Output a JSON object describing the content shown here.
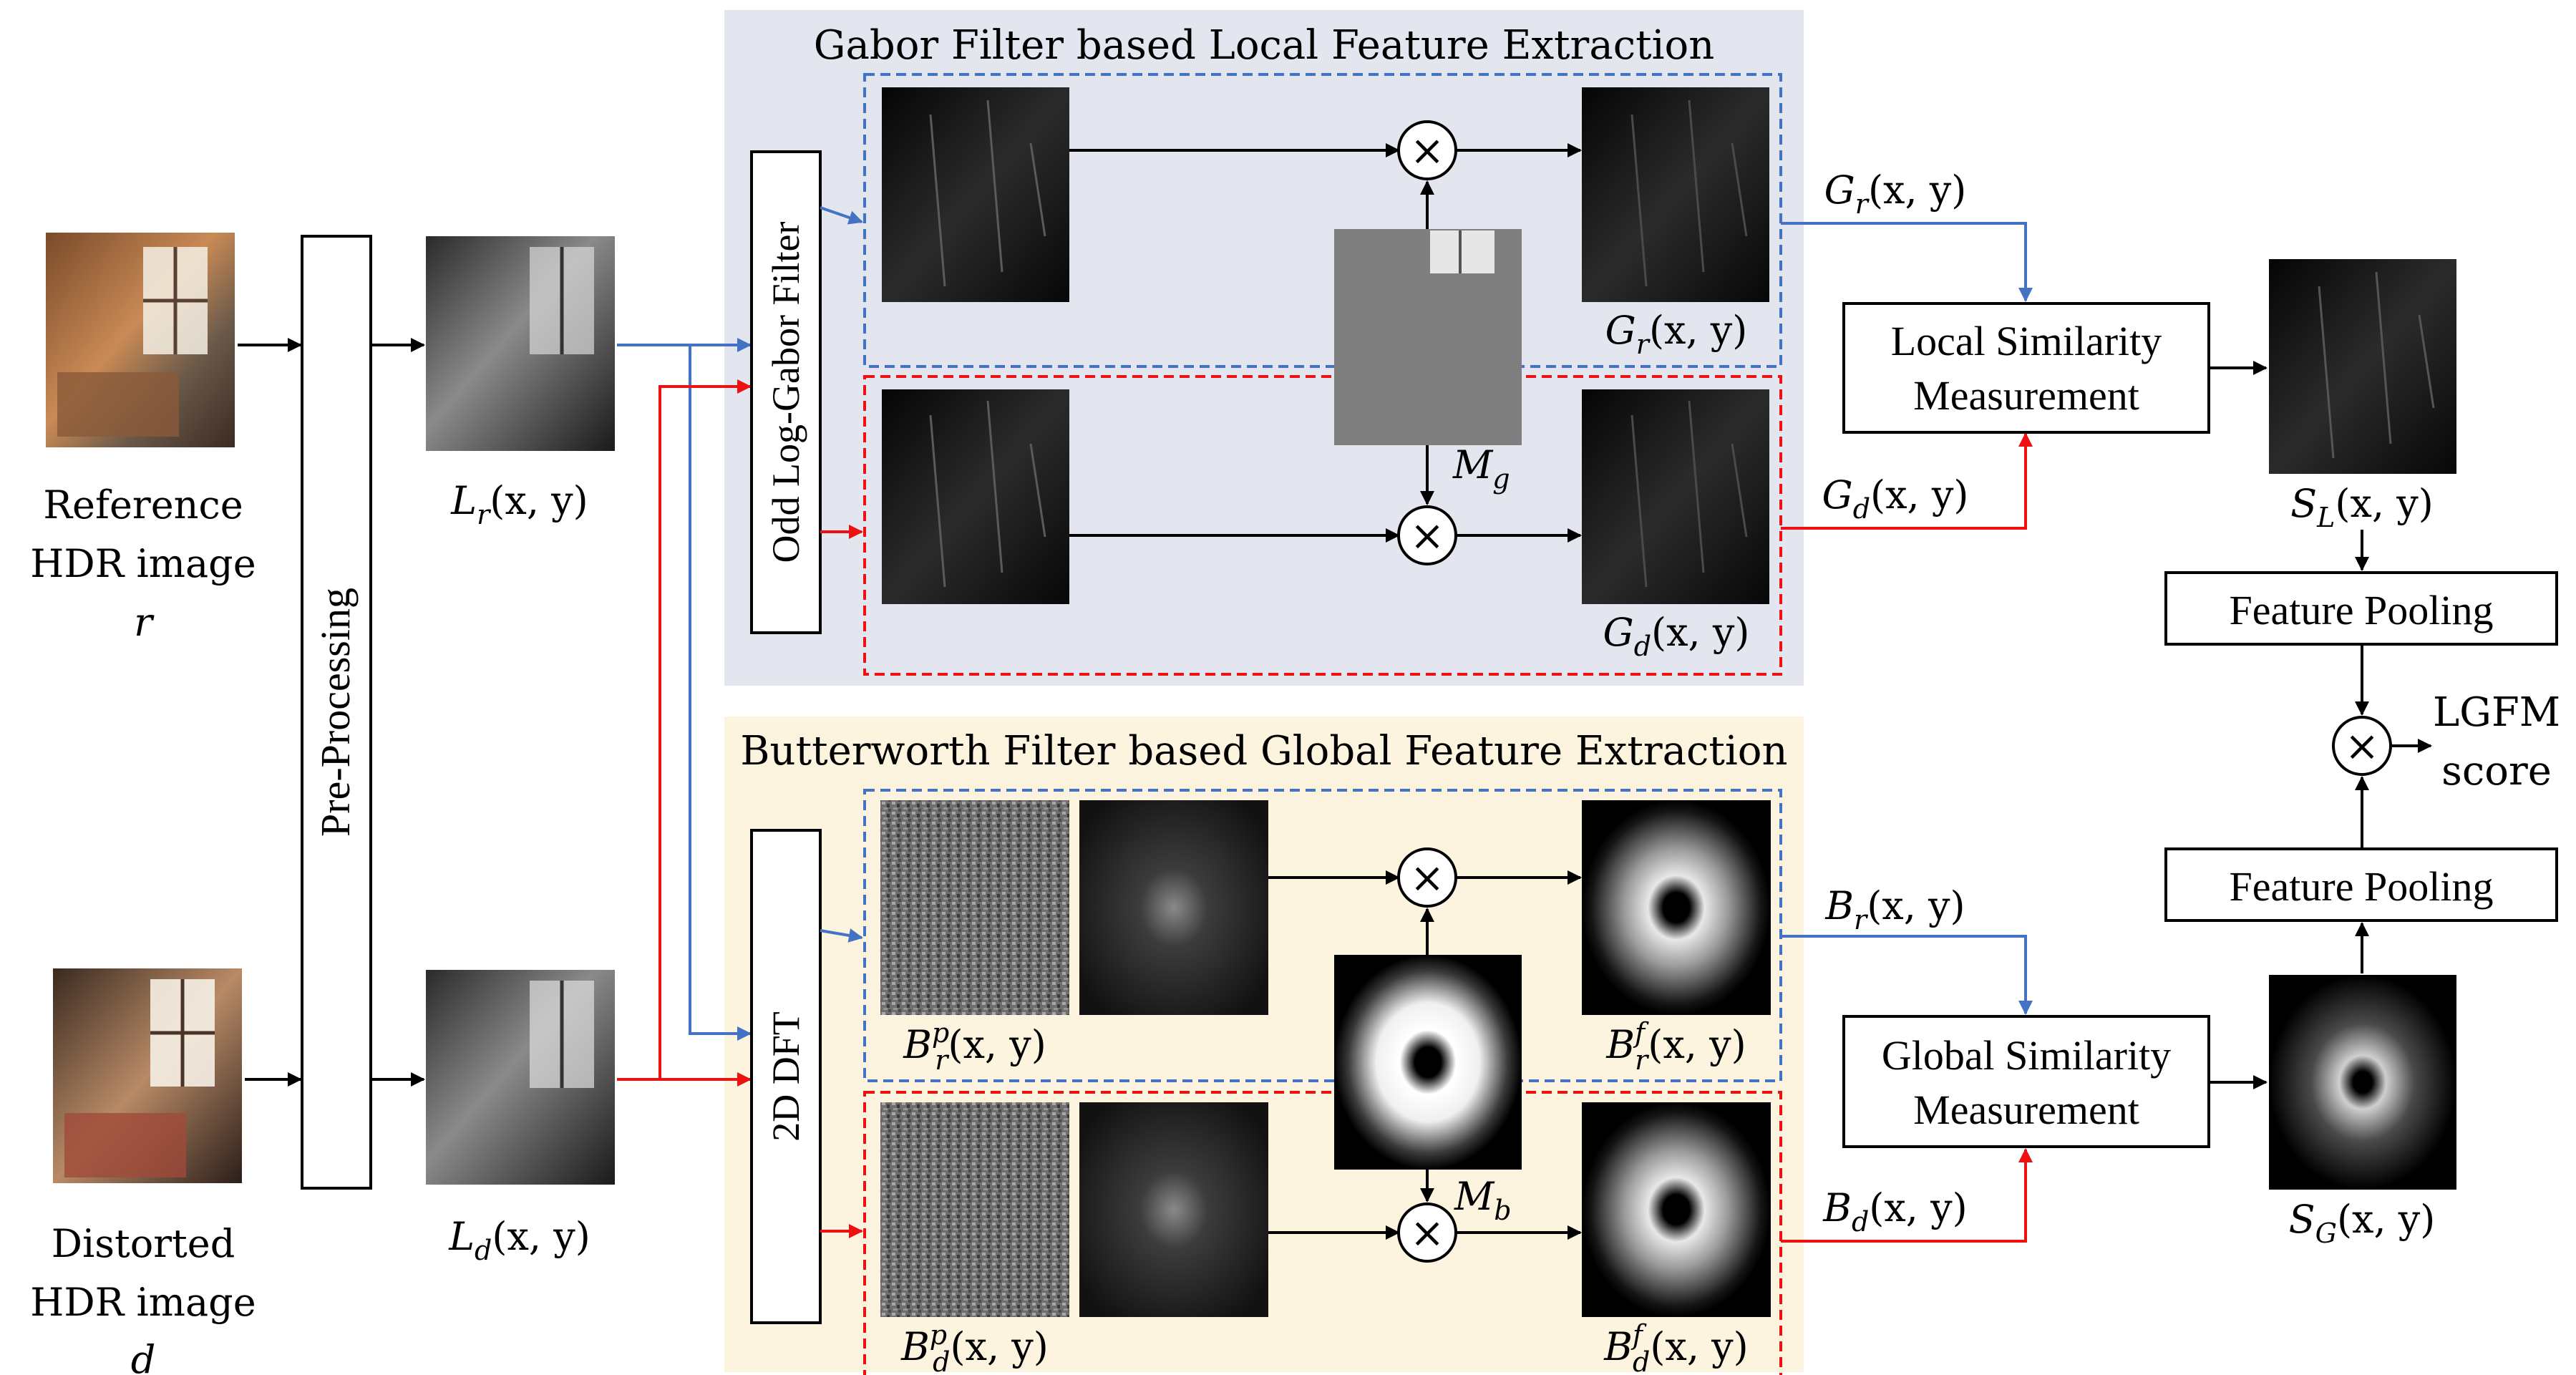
{
  "colors": {
    "local_bg": "#e3e6ee",
    "global_bg": "#fdf4e0",
    "reference_path": "#4472c4",
    "distorted_path": "#ee1111",
    "arrow_black": "#000000"
  },
  "inputs": {
    "reference_caption": [
      "Reference",
      "HDR image",
      "r"
    ],
    "distorted_caption": [
      "Distorted",
      "HDR image",
      "d"
    ]
  },
  "preprocess": {
    "label": "Pre-Processing",
    "out_reference": "L",
    "out_reference_sub": "r",
    "out_distorted": "L",
    "out_distorted_sub": "d",
    "arg": "(x, y)"
  },
  "local": {
    "title": "Gabor Filter based Local Feature Extraction",
    "filter_label": "Odd Log-Gabor Filter",
    "mask": "M",
    "mask_sub": "g",
    "out_r": "G",
    "out_r_sub": "r",
    "out_d": "G",
    "out_d_sub": "d",
    "arg": "(x, y)"
  },
  "global": {
    "title": "Butterworth Filter based Global Feature Extraction",
    "transform_label": "2D DFT",
    "mask": "M",
    "mask_sub": "b",
    "phase_r": "B",
    "phase_r_sup": "p",
    "phase_r_sub": "r",
    "phase_d": "B",
    "phase_d_sup": "p",
    "phase_d_sub": "d",
    "filtered_r": "B",
    "filtered_r_sup": "f",
    "filtered_r_sub": "r",
    "filtered_d": "B",
    "filtered_d_sup": "f",
    "filtered_d_sub": "d",
    "out_r": "B",
    "out_r_sub": "r",
    "out_d": "B",
    "out_d_sub": "d",
    "arg": "(x, y)"
  },
  "similarity": {
    "local_line1": "Local Similarity",
    "local_line2": "Measurement",
    "global_line1": "Global Similarity",
    "global_line2": "Measurement",
    "local_map": "S",
    "local_map_sub": "L",
    "global_map": "S",
    "global_map_sub": "G",
    "arg": "(x, y)"
  },
  "pooling": {
    "top_label": "Feature Pooling",
    "bottom_label": "Feature Pooling"
  },
  "output": {
    "line1": "LGFM",
    "line2": "score"
  },
  "symbols": {
    "multiply": "×"
  }
}
